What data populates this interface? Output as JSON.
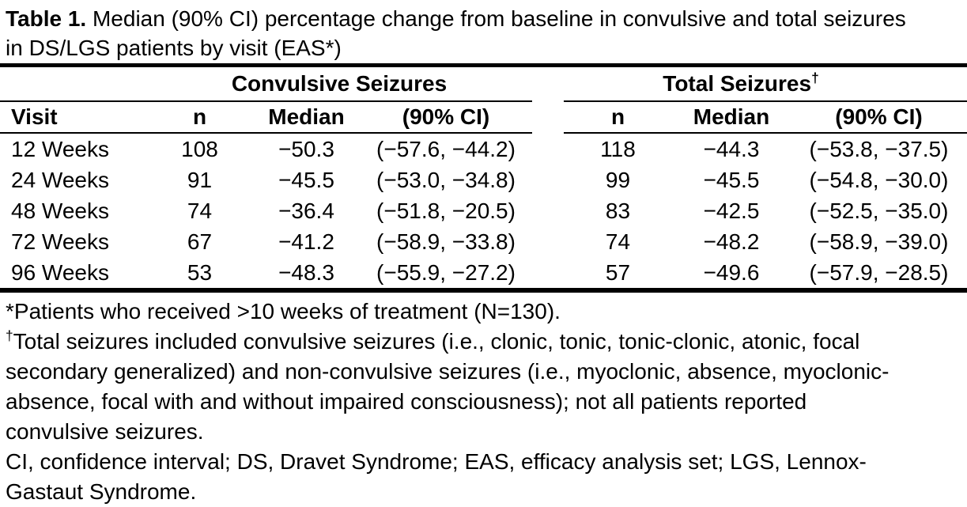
{
  "title": {
    "label": "Table 1.",
    "line1_rest": "Median (90% CI) percentage change from baseline in convulsive and total seizures",
    "line2": "in DS/LGS patients by visit (EAS*)"
  },
  "table": {
    "group_headers": {
      "convulsive": "Convulsive Seizures",
      "total": "Total Seizures",
      "dagger": "†"
    },
    "columns": {
      "visit": "Visit",
      "n": "n",
      "median": "Median",
      "ci": "(90% CI)"
    },
    "rows": [
      {
        "visit": "12 Weeks",
        "conv_n": "108",
        "conv_median": "−50.3",
        "conv_ci": "(−57.6, −44.2)",
        "total_n": "118",
        "total_median": "−44.3",
        "total_ci": "(−53.8, −37.5)"
      },
      {
        "visit": "24 Weeks",
        "conv_n": "91",
        "conv_median": "−45.5",
        "conv_ci": "(−53.0, −34.8)",
        "total_n": "99",
        "total_median": "−45.5",
        "total_ci": "(−54.8, −30.0)"
      },
      {
        "visit": "48 Weeks",
        "conv_n": "74",
        "conv_median": "−36.4",
        "conv_ci": "(−51.8, −20.5)",
        "total_n": "83",
        "total_median": "−42.5",
        "total_ci": "(−52.5, −35.0)"
      },
      {
        "visit": "72 Weeks",
        "conv_n": "67",
        "conv_median": "−41.2",
        "conv_ci": "(−58.9, −33.8)",
        "total_n": "74",
        "total_median": "−48.2",
        "total_ci": "(−58.9, −39.0)"
      },
      {
        "visit": "96 Weeks",
        "conv_n": "53",
        "conv_median": "−48.3",
        "conv_ci": "(−55.9, −27.2)",
        "total_n": "57",
        "total_median": "−49.6",
        "total_ci": "(−57.9, −28.5)"
      }
    ]
  },
  "footnotes": {
    "fn1": "*Patients who received >10 weeks of treatment (N=130).",
    "fn2_dagger": "†",
    "fn2_lines": [
      "Total seizures included convulsive seizures (i.e., clonic, tonic, tonic-clonic, atonic, focal",
      "secondary generalized) and non-convulsive seizures (i.e., myoclonic, absence, myoclonic-",
      "absence, focal with and without impaired consciousness); not all patients reported",
      "convulsive seizures."
    ],
    "fn3_lines": [
      "CI, confidence interval; DS, Dravet Syndrome; EAS, efficacy analysis set; LGS, Lennox-",
      "Gastaut Syndrome."
    ]
  },
  "colors": {
    "text": "#000000",
    "background": "#ffffff",
    "rule": "#000000"
  }
}
